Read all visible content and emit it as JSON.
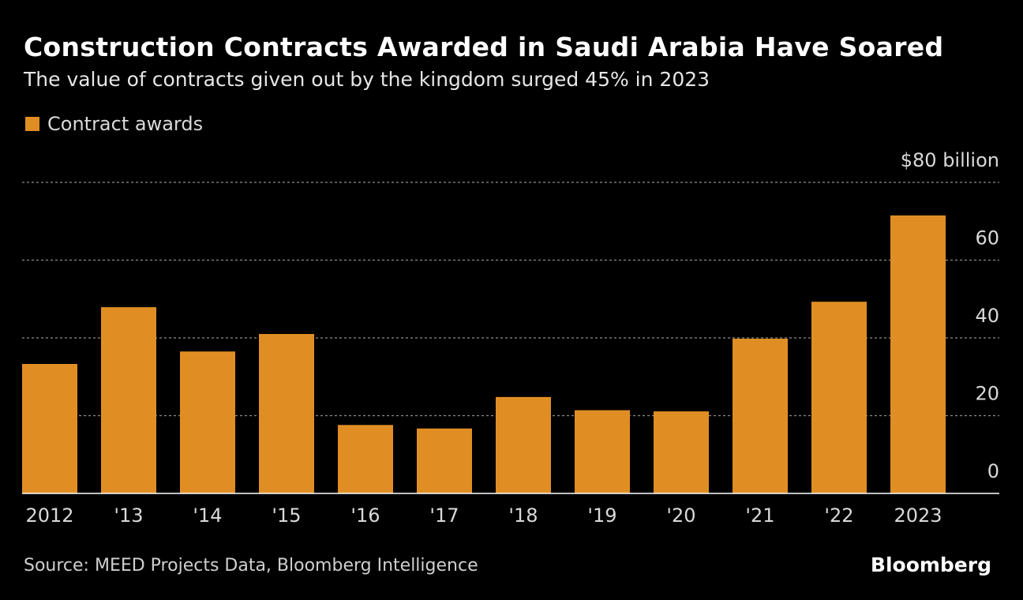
{
  "title": "Construction Contracts Awarded in Saudi Arabia Have Soared",
  "subtitle": "The value of contracts given out by the kingdom surged 45% in 2023",
  "source": "Source: MEED Projects Data, Bloomberg Intelligence",
  "brand": "Bloomberg",
  "colors": {
    "bar": "#e08e24",
    "background": "#000000",
    "grid": "#8c8c8c",
    "text": "#ffffff"
  },
  "chart_data": {
    "type": "bar",
    "categories": [
      "2012",
      "'13",
      "'14",
      "'15",
      "'16",
      "'17",
      "'18",
      "'19",
      "'20",
      "'21",
      "'22",
      "2023"
    ],
    "series": [
      {
        "name": "Contract awards",
        "values": [
          33.3,
          47.9,
          36.5,
          41.0,
          17.6,
          16.7,
          24.8,
          21.4,
          21.1,
          39.8,
          49.3,
          71.5
        ]
      }
    ],
    "ylim": [
      0,
      80
    ],
    "yticks": [
      0,
      20,
      40,
      60,
      80
    ],
    "ytick_labels": [
      "0",
      "20",
      "40",
      "60",
      "$80 billion"
    ],
    "grid": true,
    "legend_position": "top-left"
  }
}
